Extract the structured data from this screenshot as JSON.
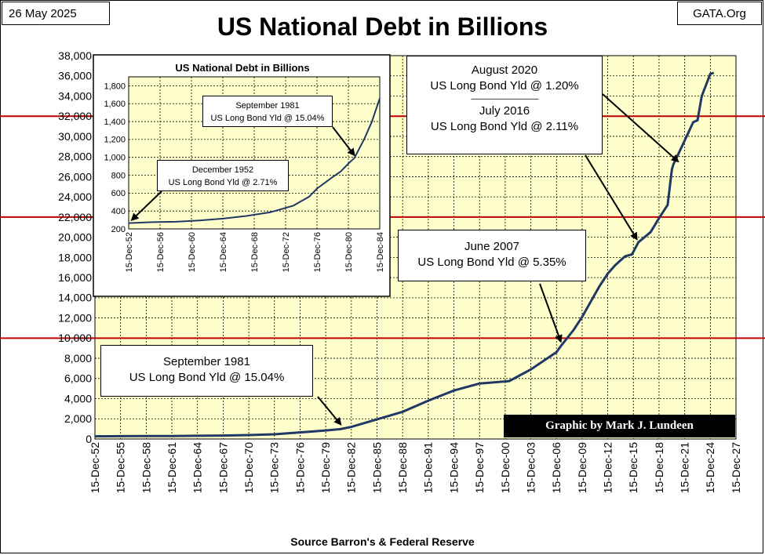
{
  "header": {
    "date": "26 May 2025",
    "source_site": "GATA.Org",
    "title": "US National Debt in Billions"
  },
  "footer": {
    "source": "Source Barron's & Federal Reserve"
  },
  "credit": "Graphic by Mark J. Lundeen",
  "colors": {
    "plot_background": "#ffffcc",
    "line": "#1f3864",
    "reference_lines": "#c00000",
    "grid": "#000000"
  },
  "callouts": {
    "sept_1981": {
      "line1": "September 1981",
      "line2": "US Long Bond Yld @ 15.04%"
    },
    "june_2007": {
      "line1": "June 2007",
      "line2": "US Long Bond Yld @ 5.35%"
    },
    "aug_2020": {
      "line1": "August 2020",
      "line2": "US Long Bond Yld @ 1.20%",
      "separator": "-------------------------------------------",
      "line3": "July 2016",
      "line4": "US Long Bond Yld @ 2.11%"
    }
  },
  "inset": {
    "title": "US National Debt in Billions",
    "callout_1952": {
      "line1": "December 1952",
      "line2": "US Long Bond Yld @ 2.71%"
    },
    "callout_1981": {
      "line1": "September 1981",
      "line2": "US Long Bond Yld @ 15.04%"
    }
  },
  "chart_data": [
    {
      "type": "line",
      "title": "US National Debt in Billions",
      "xlabel": "",
      "ylabel": "",
      "ylim": [
        0,
        38000
      ],
      "yticks": [
        0,
        2000,
        4000,
        6000,
        8000,
        10000,
        12000,
        14000,
        16000,
        18000,
        20000,
        22000,
        24000,
        26000,
        28000,
        30000,
        32000,
        34000,
        36000,
        38000
      ],
      "ytick_labels": [
        "0",
        "2,000",
        "4,000",
        "6,000",
        "8,000",
        "10,000",
        "12,000",
        "14,000",
        "16,000",
        "18,000",
        "20,000",
        "22,000",
        "24,000",
        "26,000",
        "28,000",
        "30,000",
        "32,000",
        "34,000",
        "36,000",
        "38,000"
      ],
      "xlim": [
        "1952-12-15",
        "2027-12-15"
      ],
      "xtick_labels": [
        "15-Dec-52",
        "15-Dec-55",
        "15-Dec-58",
        "15-Dec-61",
        "15-Dec-64",
        "15-Dec-67",
        "15-Dec-70",
        "15-Dec-73",
        "15-Dec-76",
        "15-Dec-79",
        "15-Dec-82",
        "15-Dec-85",
        "15-Dec-88",
        "15-Dec-91",
        "15-Dec-94",
        "15-Dec-97",
        "15-Dec-00",
        "15-Dec-03",
        "15-Dec-06",
        "15-Dec-09",
        "15-Dec-12",
        "15-Dec-15",
        "15-Dec-18",
        "15-Dec-21",
        "15-Dec-24",
        "15-Dec-27"
      ],
      "grid": true,
      "reference_lines_y": [
        10000,
        22000,
        32000
      ],
      "series": [
        {
          "x": [
            "1952-12-15",
            "1955-12-15",
            "1958-12-15",
            "1961-12-15",
            "1964-12-15",
            "1967-12-15",
            "1970-12-15",
            "1973-12-15",
            "1976-12-15",
            "1979-12-15",
            "1981-09-15",
            "1982-12-15",
            "1985-12-15",
            "1988-12-15",
            "1991-12-15",
            "1994-12-15",
            "1997-12-15",
            "2000-12-15",
            "2001-06-15",
            "2003-12-15",
            "2006-12-15",
            "2007-06-15",
            "2008-12-15",
            "2009-12-15",
            "2011-12-15",
            "2012-12-15",
            "2013-10-15",
            "2014-12-15",
            "2015-10-15",
            "2016-07-15",
            "2017-12-15",
            "2018-12-15",
            "2019-12-15",
            "2020-06-15",
            "2020-08-15",
            "2020-12-15",
            "2021-12-15",
            "2022-12-15",
            "2023-06-15",
            "2023-12-15",
            "2024-12-15",
            "2025-05-15"
          ],
          "y": [
            265,
            280,
            285,
            295,
            315,
            345,
            390,
            470,
            650,
            850,
            980,
            1200,
            1950,
            2700,
            3800,
            4800,
            5500,
            5700,
            5750,
            6900,
            8600,
            9200,
            10800,
            12100,
            15100,
            16400,
            17200,
            18100,
            18300,
            19500,
            20500,
            21900,
            23200,
            26700,
            27200,
            27800,
            29600,
            31400,
            31600,
            34000,
            36200,
            36300
          ]
        }
      ]
    },
    {
      "type": "line",
      "title": "US National Debt in Billions",
      "xlabel": "",
      "ylabel": "",
      "ylim": [
        200,
        1900
      ],
      "yticks": [
        200,
        400,
        600,
        800,
        1000,
        1200,
        1400,
        1600,
        1800
      ],
      "ytick_labels": [
        "200",
        "400",
        "600",
        "800",
        "1,000",
        "1,200",
        "1,400",
        "1,600",
        "1,800"
      ],
      "xlim": [
        "1952-12-15",
        "1984-12-15"
      ],
      "xtick_labels": [
        "15-Dec-52",
        "15-Dec-56",
        "15-Dec-60",
        "15-Dec-64",
        "15-Dec-68",
        "15-Dec-72",
        "15-Dec-76",
        "15-Dec-80",
        "15-Dec-84"
      ],
      "grid": true,
      "series": [
        {
          "x": [
            "1952-12-15",
            "1955-12-15",
            "1958-12-15",
            "1961-12-15",
            "1964-12-15",
            "1967-12-15",
            "1970-12-15",
            "1973-12-15",
            "1975-12-15",
            "1976-12-15",
            "1978-12-15",
            "1979-12-15",
            "1980-12-15",
            "1981-09-15",
            "1982-12-15",
            "1983-12-15",
            "1984-12-15"
          ],
          "y": [
            265,
            275,
            280,
            295,
            315,
            345,
            385,
            460,
            560,
            650,
            780,
            840,
            930,
            990,
            1200,
            1400,
            1660
          ]
        }
      ]
    }
  ]
}
